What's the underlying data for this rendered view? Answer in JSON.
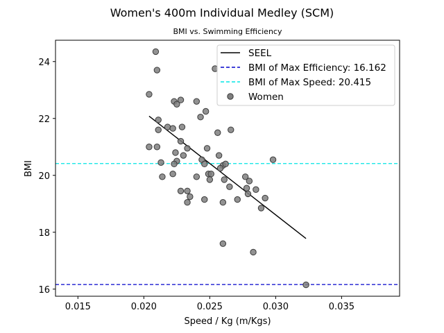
{
  "chart_data": {
    "type": "scatter",
    "title": "Women's 400m Individual Medley (SCM)",
    "subtitle": "BMI vs. Swimming Efficiency",
    "xlabel": "Speed / Kg (m/Kgs)",
    "ylabel": "BMI",
    "xlim": [
      0.0133,
      0.0394
    ],
    "ylim": [
      15.75,
      24.75
    ],
    "xticks": [
      "0.015",
      "0.020",
      "0.025",
      "0.030",
      "0.035"
    ],
    "yticks": [
      "16",
      "18",
      "20",
      "22",
      "24"
    ],
    "grid": false,
    "legend_position": "top-right",
    "legend": [
      {
        "label": "SEEL",
        "style": "solid",
        "color": "#000000"
      },
      {
        "label": "BMI of Max Efficiency: 16.162",
        "style": "dashed",
        "color": "#0000cc"
      },
      {
        "label": "BMI of Max Speed: 20.415",
        "style": "dashed",
        "color": "#00e5e5"
      },
      {
        "label": "Women",
        "style": "marker",
        "color": "#7f7f7f"
      }
    ],
    "reference_lines": [
      {
        "name": "BMI of Max Efficiency",
        "y": 16.162,
        "color": "#0000cc"
      },
      {
        "name": "BMI of Max Speed",
        "y": 20.415,
        "color": "#00e5e5"
      }
    ],
    "fit_line": {
      "name": "SEEL",
      "x": [
        0.0204,
        0.0323
      ],
      "y": [
        22.08,
        17.78
      ]
    },
    "series": [
      {
        "name": "Women",
        "color": "#7f7f7f",
        "points": [
          [
            0.0209,
            24.35
          ],
          [
            0.021,
            23.7
          ],
          [
            0.0204,
            22.85
          ],
          [
            0.0223,
            22.6
          ],
          [
            0.0225,
            22.5
          ],
          [
            0.0228,
            22.65
          ],
          [
            0.024,
            22.6
          ],
          [
            0.0247,
            22.25
          ],
          [
            0.0243,
            22.05
          ],
          [
            0.0211,
            21.95
          ],
          [
            0.0211,
            21.6
          ],
          [
            0.0218,
            21.7
          ],
          [
            0.0222,
            21.65
          ],
          [
            0.0229,
            21.7
          ],
          [
            0.0228,
            21.2
          ],
          [
            0.0204,
            21.0
          ],
          [
            0.021,
            21.0
          ],
          [
            0.0233,
            20.95
          ],
          [
            0.0224,
            20.8
          ],
          [
            0.023,
            20.7
          ],
          [
            0.0213,
            20.45
          ],
          [
            0.0225,
            20.5
          ],
          [
            0.0223,
            20.4
          ],
          [
            0.0244,
            20.55
          ],
          [
            0.0248,
            20.95
          ],
          [
            0.0256,
            21.5
          ],
          [
            0.0266,
            21.6
          ],
          [
            0.0254,
            23.75
          ],
          [
            0.0257,
            20.7
          ],
          [
            0.0246,
            20.4
          ],
          [
            0.026,
            20.35
          ],
          [
            0.0262,
            20.4
          ],
          [
            0.0258,
            20.25
          ],
          [
            0.0222,
            20.05
          ],
          [
            0.0214,
            19.95
          ],
          [
            0.024,
            19.95
          ],
          [
            0.0249,
            20.05
          ],
          [
            0.0251,
            20.05
          ],
          [
            0.025,
            19.85
          ],
          [
            0.0261,
            19.85
          ],
          [
            0.0265,
            19.6
          ],
          [
            0.0277,
            19.95
          ],
          [
            0.028,
            19.8
          ],
          [
            0.0298,
            20.55
          ],
          [
            0.0228,
            19.45
          ],
          [
            0.0233,
            19.45
          ],
          [
            0.0235,
            19.25
          ],
          [
            0.0233,
            19.05
          ],
          [
            0.0246,
            19.15
          ],
          [
            0.026,
            19.05
          ],
          [
            0.0271,
            19.15
          ],
          [
            0.0278,
            19.55
          ],
          [
            0.0279,
            19.35
          ],
          [
            0.0285,
            19.5
          ],
          [
            0.0292,
            19.2
          ],
          [
            0.0289,
            18.85
          ],
          [
            0.026,
            17.6
          ],
          [
            0.0283,
            17.3
          ],
          [
            0.0323,
            16.15
          ]
        ]
      }
    ]
  }
}
